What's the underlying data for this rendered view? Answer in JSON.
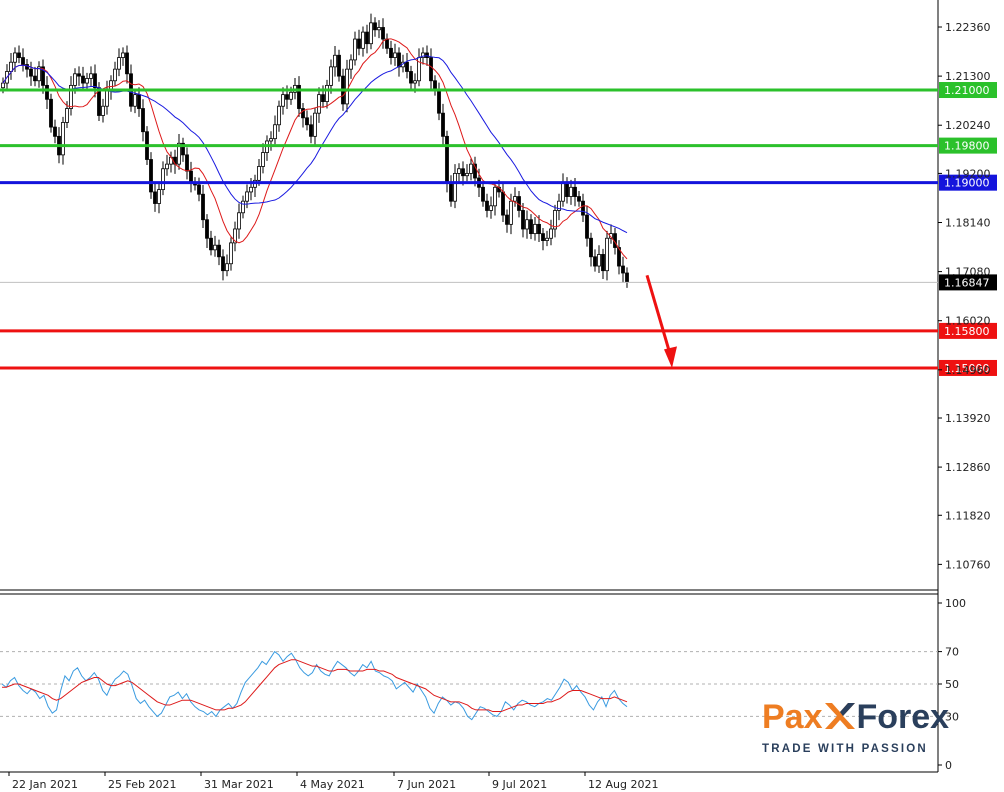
{
  "chart_data": [
    {
      "type": "candlestick",
      "title": "",
      "x_tick_labels": [
        "22 Jan 2021",
        "25 Feb 2021",
        "31 Mar 2021",
        "4 May 2021",
        "7 Jun 2021",
        "9 Jul 2021",
        "12 Aug 2021"
      ],
      "y_tick_labels": [
        "1.22360",
        "1.21300",
        "1.20240",
        "1.19200",
        "1.18140",
        "1.17080",
        "1.16020",
        "1.14960",
        "1.13920",
        "1.12860",
        "1.11820",
        "1.10760"
      ],
      "ylim": [
        1.1025,
        1.229
      ],
      "current_price": "1.16847",
      "horizontal_levels": [
        {
          "label": "1.21000",
          "value": 1.21,
          "color": "#2bc12b"
        },
        {
          "label": "1.19800",
          "value": 1.198,
          "color": "#2bc12b"
        },
        {
          "label": "1.19000",
          "value": 1.19,
          "color": "#1414dc"
        },
        {
          "label": "1.15800",
          "value": 1.158,
          "color": "#ee1111"
        },
        {
          "label": "1.15000",
          "value": 1.15,
          "color": "#ee1111"
        }
      ],
      "close_series": [
        1.2115,
        1.214,
        1.216,
        1.218,
        1.217,
        1.2155,
        1.2145,
        1.213,
        1.212,
        1.215,
        1.211,
        1.208,
        1.202,
        1.2,
        1.196,
        1.203,
        1.206,
        1.211,
        1.2135,
        1.213,
        1.2115,
        1.2125,
        1.2135,
        1.2105,
        1.2045,
        1.2065,
        1.21,
        1.212,
        1.2145,
        1.217,
        1.218,
        1.2135,
        1.2065,
        1.209,
        1.206,
        1.201,
        1.195,
        1.188,
        1.1855,
        1.1885,
        1.193,
        1.194,
        1.1955,
        1.194,
        1.1985,
        1.196,
        1.1925,
        1.19,
        1.1895,
        1.1875,
        1.182,
        1.178,
        1.1755,
        1.1765,
        1.174,
        1.171,
        1.1725,
        1.177,
        1.18,
        1.1835,
        1.186,
        1.188,
        1.189,
        1.1905,
        1.1935,
        1.1965,
        1.199,
        1.1995,
        1.2025,
        1.2065,
        1.209,
        1.208,
        1.2095,
        1.211,
        1.206,
        1.204,
        1.2025,
        1.2,
        1.205,
        1.209,
        1.2075,
        1.211,
        1.215,
        1.2175,
        1.213,
        1.207,
        1.2145,
        1.2165,
        1.221,
        1.219,
        1.2225,
        1.22,
        1.2245,
        1.223,
        1.2235,
        1.221,
        1.219,
        1.217,
        1.218,
        1.215,
        1.216,
        1.214,
        1.2115,
        1.212,
        1.217,
        1.218,
        1.217,
        1.212,
        1.21,
        1.205,
        1.2,
        1.19,
        1.186,
        1.192,
        1.193,
        1.1915,
        1.192,
        1.194,
        1.191,
        1.189,
        1.186,
        1.184,
        1.185,
        1.189,
        1.188,
        1.183,
        1.181,
        1.186,
        1.187,
        1.184,
        1.18,
        1.182,
        1.179,
        1.181,
        1.179,
        1.1775,
        1.178,
        1.18,
        1.184,
        1.186,
        1.19,
        1.187,
        1.189,
        1.187,
        1.186,
        1.183,
        1.178,
        1.174,
        1.172,
        1.1745,
        1.171,
        1.178,
        1.179,
        1.176,
        1.172,
        1.1705,
        1.1685
      ],
      "ma_fast_color": "#dd1a1a",
      "ma_slow_color": "#1a1ae0"
    },
    {
      "type": "line",
      "title": "",
      "y_tick_labels": [
        "100",
        "70",
        "50",
        "30",
        "0"
      ],
      "ylim": [
        0,
        100
      ],
      "reference_levels": [
        70,
        50,
        30
      ],
      "series": [
        {
          "color": "#3a9be0",
          "values": [
            50,
            48,
            52,
            54,
            49,
            46,
            44,
            47,
            45,
            41,
            43,
            36,
            32,
            34,
            46,
            55,
            52,
            58,
            60,
            55,
            52,
            54,
            57,
            53,
            46,
            43,
            49,
            53,
            55,
            58,
            56,
            49,
            41,
            38,
            40,
            36,
            33,
            30,
            32,
            37,
            42,
            43,
            45,
            41,
            44,
            39,
            36,
            34,
            33,
            31,
            33,
            30,
            34,
            36,
            38,
            35,
            38,
            45,
            51,
            54,
            57,
            60,
            64,
            62,
            66,
            70,
            68,
            64,
            67,
            69,
            65,
            60,
            57,
            55,
            57,
            62,
            58,
            56,
            55,
            60,
            64,
            62,
            60,
            57,
            55,
            58,
            62,
            60,
            64,
            58,
            57,
            55,
            54,
            52,
            47,
            49,
            51,
            48,
            45,
            50,
            46,
            42,
            35,
            32,
            38,
            42,
            40,
            37,
            39,
            38,
            35,
            30,
            28,
            32,
            36,
            35,
            33,
            31,
            30,
            33,
            39,
            37,
            34,
            38,
            40,
            39,
            37,
            36,
            38,
            39,
            41,
            40,
            44,
            48,
            53,
            51,
            46,
            49,
            45,
            42,
            37,
            34,
            39,
            42,
            36,
            43,
            46,
            41,
            38,
            36
          ]
        },
        {
          "color": "#dd1a1a",
          "values": [
            48,
            48,
            49,
            50,
            50,
            49,
            48,
            47,
            46,
            45,
            44,
            43,
            41,
            40,
            41,
            43,
            45,
            47,
            49,
            51,
            52,
            53,
            54,
            54,
            52,
            50,
            49,
            49,
            50,
            51,
            52,
            51,
            49,
            47,
            45,
            43,
            41,
            39,
            38,
            37,
            37,
            38,
            39,
            40,
            40,
            40,
            39,
            38,
            37,
            36,
            35,
            34,
            34,
            34,
            35,
            35,
            36,
            37,
            39,
            42,
            45,
            48,
            51,
            54,
            57,
            60,
            62,
            63,
            64,
            65,
            65,
            64,
            63,
            62,
            61,
            61,
            60,
            59,
            58,
            58,
            59,
            59,
            59,
            58,
            58,
            58,
            58,
            59,
            59,
            59,
            58,
            58,
            57,
            56,
            54,
            53,
            52,
            51,
            50,
            49,
            48,
            47,
            45,
            43,
            42,
            41,
            40,
            39,
            39,
            39,
            38,
            37,
            35,
            34,
            34,
            34,
            34,
            33,
            33,
            33,
            34,
            35,
            36,
            37,
            37,
            38,
            38,
            38,
            38,
            38,
            39,
            39,
            40,
            41,
            43,
            45,
            46,
            46,
            46,
            45,
            44,
            43,
            42,
            41,
            41,
            41,
            42,
            41,
            40,
            39
          ]
        }
      ]
    }
  ],
  "brand": {
    "pax": "Pax",
    "x": "X",
    "forex": "Forex",
    "tagline": "TRADE WITH PASSION"
  }
}
